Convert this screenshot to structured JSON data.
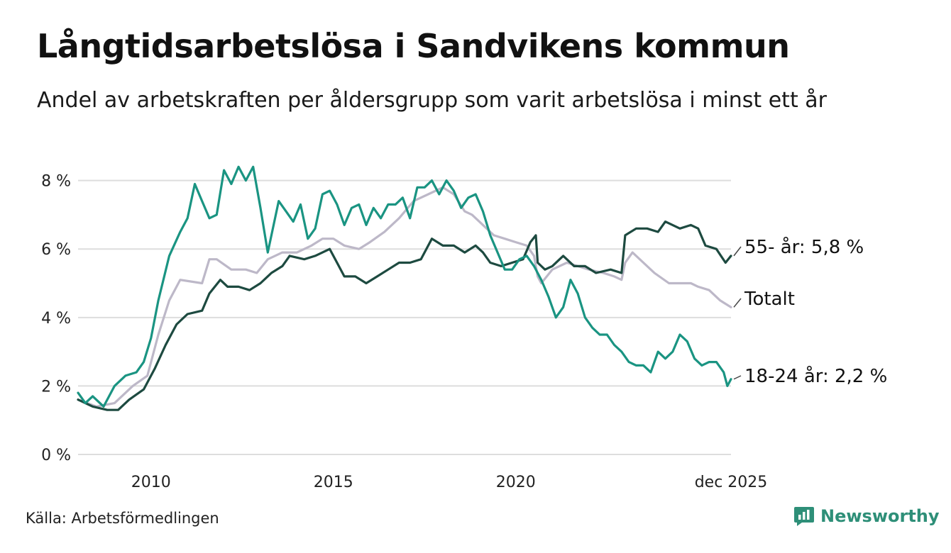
{
  "title": "Långtidsarbetslösa i Sandvikens kommun",
  "subtitle": "Andel av arbetskraften per åldersgrupp som varit arbetslösa i minst ett år",
  "source": "Källa: Arbetsförmedlingen",
  "brand": "Newsworthy",
  "colors": {
    "series_18_24": "#1a9482",
    "series_55": "#1d4a40",
    "series_total": "#bdb8c8",
    "grid": "#dddddd",
    "brand": "#2e8f78"
  },
  "chart_data": {
    "type": "line",
    "ylim": [
      0,
      8.8
    ],
    "xlim": [
      2008,
      2025.9
    ],
    "y_ticks": [
      {
        "value": 0,
        "label": "0 %"
      },
      {
        "value": 2,
        "label": "2 %"
      },
      {
        "value": 4,
        "label": "4 %"
      },
      {
        "value": 6,
        "label": "6 %"
      },
      {
        "value": 8,
        "label": "8 %"
      }
    ],
    "x_ticks": [
      {
        "value": 2010,
        "label": "2010"
      },
      {
        "value": 2015,
        "label": "2015"
      },
      {
        "value": 2020,
        "label": "2020"
      },
      {
        "value": 2025.9,
        "label": "dec 2025"
      }
    ],
    "series": [
      {
        "name": "Totalt",
        "color_key": "series_total",
        "end_label": "Totalt",
        "points": [
          [
            2008.0,
            1.6
          ],
          [
            2008.5,
            1.4
          ],
          [
            2009.0,
            1.5
          ],
          [
            2009.5,
            2.0
          ],
          [
            2009.9,
            2.3
          ],
          [
            2010.2,
            3.5
          ],
          [
            2010.5,
            4.5
          ],
          [
            2010.8,
            5.1
          ],
          [
            2011.4,
            5.0
          ],
          [
            2011.6,
            5.7
          ],
          [
            2011.8,
            5.7
          ],
          [
            2012.2,
            5.4
          ],
          [
            2012.6,
            5.4
          ],
          [
            2012.9,
            5.3
          ],
          [
            2013.2,
            5.7
          ],
          [
            2013.6,
            5.9
          ],
          [
            2014.0,
            5.9
          ],
          [
            2014.4,
            6.1
          ],
          [
            2014.7,
            6.3
          ],
          [
            2015.0,
            6.3
          ],
          [
            2015.3,
            6.1
          ],
          [
            2015.7,
            6.0
          ],
          [
            2016.0,
            6.2
          ],
          [
            2016.4,
            6.5
          ],
          [
            2016.8,
            6.9
          ],
          [
            2017.2,
            7.4
          ],
          [
            2017.6,
            7.6
          ],
          [
            2018.0,
            7.8
          ],
          [
            2018.3,
            7.6
          ],
          [
            2018.6,
            7.1
          ],
          [
            2018.8,
            7.0
          ],
          [
            2019.0,
            6.8
          ],
          [
            2019.4,
            6.4
          ],
          [
            2019.7,
            6.3
          ],
          [
            2020.0,
            6.2
          ],
          [
            2020.3,
            6.1
          ],
          [
            2020.5,
            5.8
          ],
          [
            2020.6,
            5.2
          ],
          [
            2020.7,
            5.0
          ],
          [
            2021.0,
            5.4
          ],
          [
            2021.4,
            5.6
          ],
          [
            2021.7,
            5.5
          ],
          [
            2022.0,
            5.4
          ],
          [
            2022.4,
            5.3
          ],
          [
            2022.7,
            5.2
          ],
          [
            2022.9,
            5.1
          ],
          [
            2023.0,
            5.6
          ],
          [
            2023.2,
            5.9
          ],
          [
            2023.5,
            5.6
          ],
          [
            2023.8,
            5.3
          ],
          [
            2024.2,
            5.0
          ],
          [
            2024.8,
            5.0
          ],
          [
            2025.0,
            4.9
          ],
          [
            2025.3,
            4.8
          ],
          [
            2025.6,
            4.5
          ],
          [
            2025.9,
            4.3
          ]
        ]
      },
      {
        "name": "55- år",
        "color_key": "series_55",
        "end_label": "55- år: 5,8 %",
        "points": [
          [
            2008.0,
            1.6
          ],
          [
            2008.4,
            1.4
          ],
          [
            2008.8,
            1.3
          ],
          [
            2009.1,
            1.3
          ],
          [
            2009.4,
            1.6
          ],
          [
            2009.8,
            1.9
          ],
          [
            2010.1,
            2.5
          ],
          [
            2010.4,
            3.2
          ],
          [
            2010.7,
            3.8
          ],
          [
            2011.0,
            4.1
          ],
          [
            2011.4,
            4.2
          ],
          [
            2011.6,
            4.7
          ],
          [
            2011.9,
            5.1
          ],
          [
            2012.1,
            4.9
          ],
          [
            2012.4,
            4.9
          ],
          [
            2012.7,
            4.8
          ],
          [
            2013.0,
            5.0
          ],
          [
            2013.3,
            5.3
          ],
          [
            2013.6,
            5.5
          ],
          [
            2013.8,
            5.8
          ],
          [
            2014.2,
            5.7
          ],
          [
            2014.5,
            5.8
          ],
          [
            2014.9,
            6.0
          ],
          [
            2015.1,
            5.6
          ],
          [
            2015.3,
            5.2
          ],
          [
            2015.6,
            5.2
          ],
          [
            2015.9,
            5.0
          ],
          [
            2016.2,
            5.2
          ],
          [
            2016.5,
            5.4
          ],
          [
            2016.8,
            5.6
          ],
          [
            2017.1,
            5.6
          ],
          [
            2017.4,
            5.7
          ],
          [
            2017.7,
            6.3
          ],
          [
            2018.0,
            6.1
          ],
          [
            2018.3,
            6.1
          ],
          [
            2018.6,
            5.9
          ],
          [
            2018.9,
            6.1
          ],
          [
            2019.1,
            5.9
          ],
          [
            2019.3,
            5.6
          ],
          [
            2019.6,
            5.5
          ],
          [
            2019.9,
            5.6
          ],
          [
            2020.2,
            5.7
          ],
          [
            2020.4,
            6.2
          ],
          [
            2020.55,
            6.4
          ],
          [
            2020.6,
            5.6
          ],
          [
            2020.8,
            5.4
          ],
          [
            2021.0,
            5.5
          ],
          [
            2021.3,
            5.8
          ],
          [
            2021.6,
            5.5
          ],
          [
            2021.9,
            5.5
          ],
          [
            2022.2,
            5.3
          ],
          [
            2022.6,
            5.4
          ],
          [
            2022.9,
            5.3
          ],
          [
            2023.0,
            6.4
          ],
          [
            2023.3,
            6.6
          ],
          [
            2023.6,
            6.6
          ],
          [
            2023.9,
            6.5
          ],
          [
            2024.1,
            6.8
          ],
          [
            2024.5,
            6.6
          ],
          [
            2024.8,
            6.7
          ],
          [
            2025.0,
            6.6
          ],
          [
            2025.2,
            6.1
          ],
          [
            2025.5,
            6.0
          ],
          [
            2025.75,
            5.6
          ],
          [
            2025.9,
            5.8
          ]
        ]
      },
      {
        "name": "18-24 år",
        "color_key": "series_18_24",
        "end_label": "18-24 år: 2,2 %",
        "points": [
          [
            2008.0,
            1.8
          ],
          [
            2008.2,
            1.5
          ],
          [
            2008.4,
            1.7
          ],
          [
            2008.7,
            1.4
          ],
          [
            2009.0,
            2.0
          ],
          [
            2009.3,
            2.3
          ],
          [
            2009.6,
            2.4
          ],
          [
            2009.8,
            2.7
          ],
          [
            2010.0,
            3.4
          ],
          [
            2010.2,
            4.5
          ],
          [
            2010.5,
            5.8
          ],
          [
            2010.8,
            6.5
          ],
          [
            2011.0,
            6.9
          ],
          [
            2011.2,
            7.9
          ],
          [
            2011.4,
            7.4
          ],
          [
            2011.6,
            6.9
          ],
          [
            2011.8,
            7.0
          ],
          [
            2012.0,
            8.3
          ],
          [
            2012.2,
            7.9
          ],
          [
            2012.4,
            8.4
          ],
          [
            2012.6,
            8.0
          ],
          [
            2012.8,
            8.4
          ],
          [
            2013.0,
            7.2
          ],
          [
            2013.2,
            5.9
          ],
          [
            2013.5,
            7.4
          ],
          [
            2013.7,
            7.1
          ],
          [
            2013.9,
            6.8
          ],
          [
            2014.1,
            7.3
          ],
          [
            2014.3,
            6.3
          ],
          [
            2014.5,
            6.6
          ],
          [
            2014.7,
            7.6
          ],
          [
            2014.9,
            7.7
          ],
          [
            2015.1,
            7.3
          ],
          [
            2015.3,
            6.7
          ],
          [
            2015.5,
            7.2
          ],
          [
            2015.7,
            7.3
          ],
          [
            2015.9,
            6.7
          ],
          [
            2016.1,
            7.2
          ],
          [
            2016.3,
            6.9
          ],
          [
            2016.5,
            7.3
          ],
          [
            2016.7,
            7.3
          ],
          [
            2016.9,
            7.5
          ],
          [
            2017.1,
            6.9
          ],
          [
            2017.3,
            7.8
          ],
          [
            2017.5,
            7.8
          ],
          [
            2017.7,
            8.0
          ],
          [
            2017.9,
            7.6
          ],
          [
            2018.1,
            8.0
          ],
          [
            2018.3,
            7.7
          ],
          [
            2018.5,
            7.2
          ],
          [
            2018.7,
            7.5
          ],
          [
            2018.9,
            7.6
          ],
          [
            2019.1,
            7.1
          ],
          [
            2019.3,
            6.4
          ],
          [
            2019.5,
            5.9
          ],
          [
            2019.7,
            5.4
          ],
          [
            2019.9,
            5.4
          ],
          [
            2020.1,
            5.7
          ],
          [
            2020.3,
            5.8
          ],
          [
            2020.5,
            5.5
          ],
          [
            2020.7,
            5.1
          ],
          [
            2020.9,
            4.6
          ],
          [
            2021.1,
            4.0
          ],
          [
            2021.3,
            4.3
          ],
          [
            2021.5,
            5.1
          ],
          [
            2021.7,
            4.7
          ],
          [
            2021.9,
            4.0
          ],
          [
            2022.1,
            3.7
          ],
          [
            2022.3,
            3.5
          ],
          [
            2022.5,
            3.5
          ],
          [
            2022.7,
            3.2
          ],
          [
            2022.9,
            3.0
          ],
          [
            2023.1,
            2.7
          ],
          [
            2023.3,
            2.6
          ],
          [
            2023.5,
            2.6
          ],
          [
            2023.7,
            2.4
          ],
          [
            2023.9,
            3.0
          ],
          [
            2024.1,
            2.8
          ],
          [
            2024.3,
            3.0
          ],
          [
            2024.5,
            3.5
          ],
          [
            2024.7,
            3.3
          ],
          [
            2024.9,
            2.8
          ],
          [
            2025.1,
            2.6
          ],
          [
            2025.3,
            2.7
          ],
          [
            2025.5,
            2.7
          ],
          [
            2025.7,
            2.4
          ],
          [
            2025.8,
            2.0
          ],
          [
            2025.9,
            2.2
          ]
        ]
      }
    ]
  }
}
